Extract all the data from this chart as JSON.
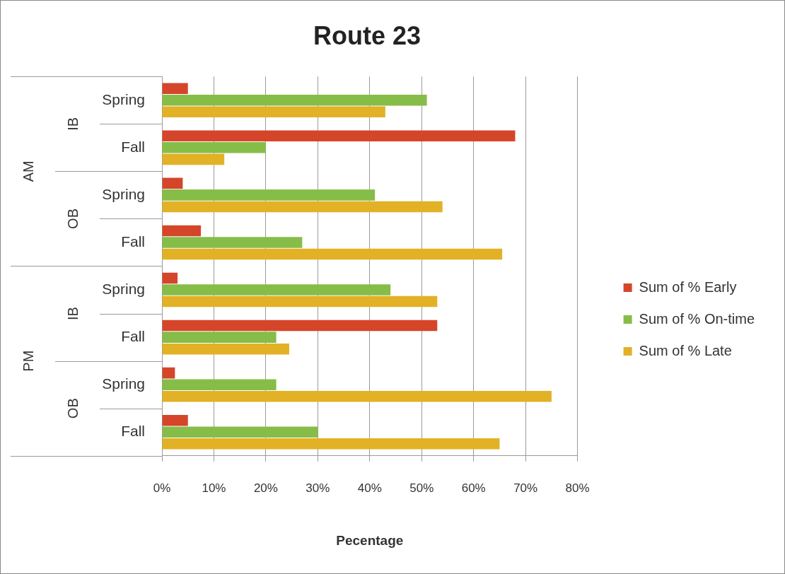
{
  "chart_data": {
    "type": "bar",
    "orientation": "horizontal",
    "title": "Route 23",
    "xlabel": "Pecentage",
    "categories": [
      "Spring",
      "Fall",
      "Spring",
      "Fall",
      "Spring",
      "Fall",
      "Spring",
      "Fall"
    ],
    "annotations": [
      "IB",
      "OB",
      "IB",
      "OB",
      "AM",
      "PM"
    ],
    "series": [
      {
        "name": "Sum of % Early",
        "color": "#d5452a",
        "values": [
          5,
          68,
          4,
          7.5,
          3,
          53,
          2.5,
          5
        ]
      },
      {
        "name": "Sum of % On-time",
        "color": "#86bd48",
        "values": [
          51,
          20,
          41,
          27,
          44,
          22,
          22,
          30
        ]
      },
      {
        "name": "Sum of % Late",
        "color": "#e2b125",
        "values": [
          43,
          12,
          54,
          65.5,
          53,
          24.5,
          75,
          65
        ]
      }
    ],
    "xlim": [
      0,
      80
    ],
    "xticks": [
      {
        "value": 0,
        "label": "0%"
      },
      {
        "value": 10,
        "label": "10%"
      },
      {
        "value": 20,
        "label": "20%"
      },
      {
        "value": 30,
        "label": "30%"
      },
      {
        "value": 40,
        "label": "40%"
      },
      {
        "value": 50,
        "label": "50%"
      },
      {
        "value": 60,
        "label": "60%"
      },
      {
        "value": 70,
        "label": "70%"
      },
      {
        "value": 80,
        "label": "80%"
      }
    ],
    "grid": "x",
    "legend": "right"
  }
}
